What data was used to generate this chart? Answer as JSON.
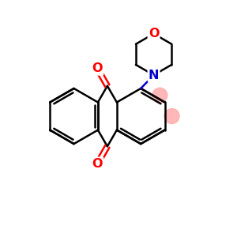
{
  "background_color": "#ffffff",
  "bond_color": "#000000",
  "oxygen_color": "#ff0000",
  "nitrogen_color": "#0000cc",
  "highlight_color": "#ffb0b0",
  "line_width": 1.8,
  "figsize": [
    3.0,
    3.0
  ],
  "dpi": 100,
  "xlim": [
    0,
    10
  ],
  "ylim": [
    0,
    10
  ]
}
